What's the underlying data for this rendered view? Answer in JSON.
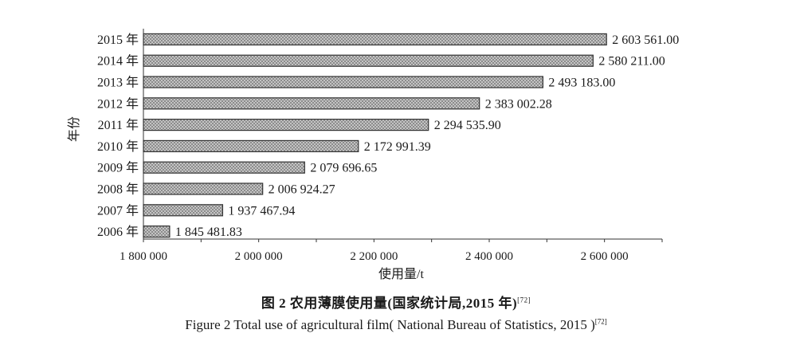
{
  "chart_data": {
    "type": "bar",
    "orientation": "horizontal",
    "categories": [
      "2006 年",
      "2007 年",
      "2008 年",
      "2009 年",
      "2010 年",
      "2011 年",
      "2012 年",
      "2013 年",
      "2014 年",
      "2015 年"
    ],
    "values": [
      1845481.83,
      1937467.94,
      2006924.27,
      2079696.65,
      2172991.39,
      2294535.9,
      2383002.28,
      2493183.0,
      2580211.0,
      2603561.0
    ],
    "value_labels": [
      "1 845 481.83",
      "1 937 467.94",
      "2 006 924.27",
      "2 079 696.65",
      "2 172 991.39",
      "2 294 535.90",
      "2 383 002.28",
      "2 493 183.00",
      "2 580 211.00",
      "2 603 561.00"
    ],
    "xlim": [
      1800000,
      2700000
    ],
    "x_ticks": [
      1800000,
      2000000,
      2200000,
      2400000,
      2600000
    ],
    "x_tick_labels": [
      "1 800 000",
      "2 000 000",
      "2 200 000",
      "2 400 000",
      "2 600 000"
    ],
    "xlabel": "使用量/t",
    "ylabel": "年份",
    "grid": false,
    "bar_fill": "#b4b4b4",
    "bar_stroke": "#333333"
  },
  "caption": {
    "cn_text": "图 2  农用薄膜使用量(国家统计局,2015 年)",
    "cn_ref": "[72]",
    "en_text": "Figure 2  Total use of agricultural film( National Bureau of Statistics, 2015 )",
    "en_ref": "[72]"
  }
}
